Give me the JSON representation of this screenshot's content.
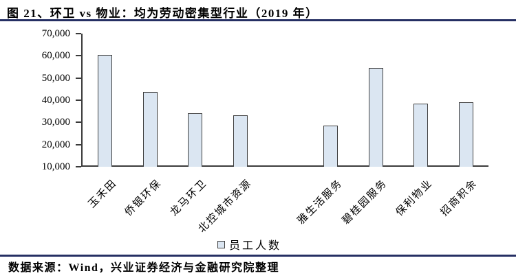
{
  "title": "图 21、环卫 vs 物业：均为劳动密集型行业（2019 年）",
  "footer": "数据来源：Wind，兴业证券经济与金融研究院整理",
  "legend": {
    "label": "员工人数",
    "marker": "square"
  },
  "colors": {
    "bar_fill": "#dbe6f2",
    "bar_border": "#3f3f3f",
    "axis": "#3a3a3a",
    "rule": "#252f63",
    "text": "#000000",
    "background": "#ffffff"
  },
  "chart_data": {
    "type": "bar",
    "title": "图 21、环卫 vs 物业：均为劳动密集型行业（2019 年）",
    "series_name": "员工人数",
    "categories": [
      "玉禾田",
      "侨银环保",
      "龙马环卫",
      "北控城市资源",
      "",
      "雅生活服务",
      "碧桂园服务",
      "保利物业",
      "招商积余"
    ],
    "values": [
      60300,
      43700,
      34100,
      33100,
      null,
      28500,
      54400,
      38500,
      39100
    ],
    "xlabel": "",
    "ylabel": "",
    "ylim": [
      10000,
      70000
    ],
    "ytick_step": 10000,
    "ytick_labels": [
      "10,000",
      "20,000",
      "30,000",
      "40,000",
      "50,000",
      "60,000",
      "70,000"
    ],
    "grid": false,
    "legend_position": "bottom",
    "note": "gap between category 4 and 5 separates sanitation vs property companies"
  }
}
